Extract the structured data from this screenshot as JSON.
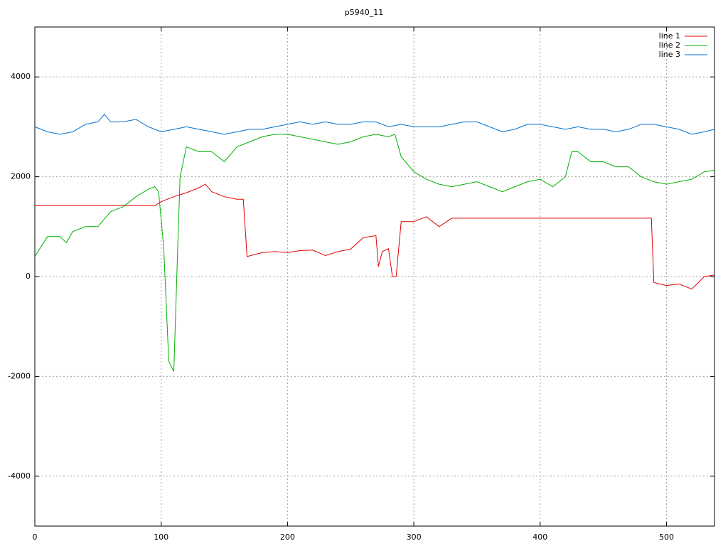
{
  "chart_data": {
    "type": "line",
    "title": "p5940_11",
    "xlim": [
      0,
      538
    ],
    "ylim": [
      -5000,
      5000
    ],
    "xticks": [
      0,
      100,
      200,
      300,
      400,
      500
    ],
    "yticks": [
      -4000,
      -2000,
      0,
      2000,
      4000
    ],
    "grid": true,
    "legend": "top-right",
    "series": [
      {
        "name": "line 1",
        "color": "#e00000",
        "x": [
          0,
          95,
          100,
          110,
          120,
          130,
          135,
          140,
          150,
          160,
          165,
          168,
          180,
          190,
          200,
          210,
          220,
          230,
          240,
          250,
          260,
          270,
          272,
          275,
          280,
          283,
          286,
          290,
          300,
          310,
          320,
          330,
          340,
          488,
          490,
          500,
          510,
          520,
          530,
          538
        ],
        "values": [
          1420,
          1420,
          1500,
          1600,
          1680,
          1780,
          1850,
          1700,
          1600,
          1550,
          1550,
          400,
          480,
          500,
          480,
          520,
          530,
          420,
          500,
          550,
          780,
          820,
          200,
          500,
          560,
          0,
          0,
          1100,
          1100,
          1200,
          1000,
          1170,
          1170,
          1170,
          -120,
          -180,
          -150,
          -250,
          0,
          30
        ]
      },
      {
        "name": "line 2",
        "color": "#00b000",
        "x": [
          0,
          10,
          20,
          25,
          30,
          40,
          50,
          60,
          70,
          80,
          90,
          95,
          98,
          102,
          106,
          110,
          113,
          115,
          120,
          130,
          140,
          150,
          160,
          170,
          180,
          190,
          200,
          210,
          220,
          230,
          240,
          250,
          260,
          270,
          280,
          285,
          290,
          300,
          310,
          320,
          330,
          340,
          350,
          360,
          370,
          380,
          390,
          400,
          410,
          420,
          425,
          430,
          440,
          450,
          460,
          470,
          480,
          490,
          500,
          510,
          520,
          530,
          538
        ],
        "values": [
          400,
          800,
          800,
          680,
          900,
          1000,
          1000,
          1300,
          1400,
          1600,
          1750,
          1800,
          1700,
          600,
          -1700,
          -1900,
          500,
          2000,
          2600,
          2500,
          2500,
          2300,
          2600,
          2700,
          2800,
          2850,
          2850,
          2800,
          2750,
          2700,
          2650,
          2700,
          2800,
          2850,
          2800,
          2850,
          2400,
          2100,
          1950,
          1850,
          1800,
          1850,
          1900,
          1800,
          1700,
          1800,
          1900,
          1950,
          1800,
          2000,
          2500,
          2500,
          2300,
          2300,
          2200,
          2200,
          2000,
          1900,
          1850,
          1900,
          1950,
          2100,
          2130
        ]
      },
      {
        "name": "line 3",
        "color": "#0070d0",
        "x": [
          0,
          10,
          20,
          30,
          40,
          50,
          55,
          60,
          70,
          80,
          90,
          100,
          110,
          120,
          130,
          140,
          150,
          160,
          170,
          180,
          190,
          200,
          210,
          220,
          230,
          240,
          250,
          260,
          270,
          280,
          290,
          300,
          310,
          320,
          330,
          340,
          350,
          360,
          370,
          380,
          390,
          400,
          410,
          420,
          430,
          440,
          450,
          460,
          470,
          480,
          490,
          500,
          510,
          520,
          530,
          538
        ],
        "values": [
          3000,
          2900,
          2850,
          2900,
          3050,
          3100,
          3250,
          3100,
          3100,
          3150,
          3000,
          2900,
          2950,
          3000,
          2950,
          2900,
          2850,
          2900,
          2950,
          2950,
          3000,
          3050,
          3100,
          3050,
          3100,
          3050,
          3050,
          3100,
          3100,
          3000,
          3050,
          3000,
          3000,
          3000,
          3050,
          3100,
          3100,
          3000,
          2900,
          2950,
          3050,
          3050,
          3000,
          2950,
          3000,
          2950,
          2950,
          2900,
          2950,
          3050,
          3050,
          3000,
          2950,
          2850,
          2900,
          2950
        ]
      }
    ]
  }
}
